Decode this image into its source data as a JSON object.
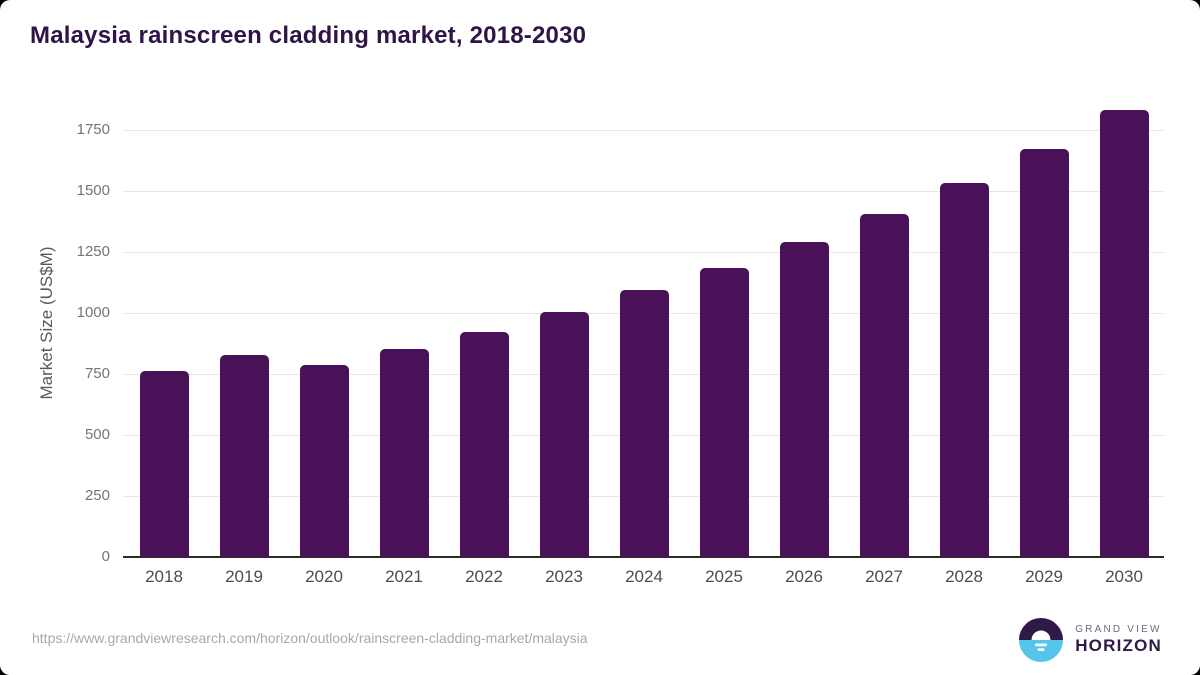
{
  "title": "Malaysia rainscreen cladding market, 2018-2030",
  "source_url": "https://www.grandviewresearch.com/horizon/outlook/rainscreen-cladding-market/malaysia",
  "logo": {
    "line1": "GRAND VIEW",
    "line2": "HORIZON"
  },
  "colors": {
    "bar": "#4a1159",
    "title": "#2e1447",
    "gridline": "#e7e7e7",
    "axis_line": "#2b2b2b",
    "y_tick": "#757575",
    "x_tick": "#4d4d4d",
    "axis_title": "#595959",
    "source": "#a8a8a8",
    "logo_purple": "#2e1a47",
    "logo_blue": "#56c5ea"
  },
  "chart_data": {
    "type": "bar",
    "title": "Malaysia rainscreen cladding market, 2018-2030",
    "categories": [
      "2018",
      "2019",
      "2020",
      "2021",
      "2022",
      "2023",
      "2024",
      "2025",
      "2026",
      "2027",
      "2028",
      "2029",
      "2030"
    ],
    "values": [
      765,
      829,
      787,
      852,
      925,
      1004,
      1094,
      1184,
      1291,
      1406,
      1533,
      1676,
      1832
    ],
    "xlabel": "",
    "ylabel": "Market Size (US$M)",
    "ylim": [
      0,
      1875
    ],
    "yticks": [
      0,
      250,
      500,
      750,
      1000,
      1250,
      1500,
      1750
    ],
    "grid": true,
    "legend": "none",
    "bar_color": "#4a1159"
  }
}
